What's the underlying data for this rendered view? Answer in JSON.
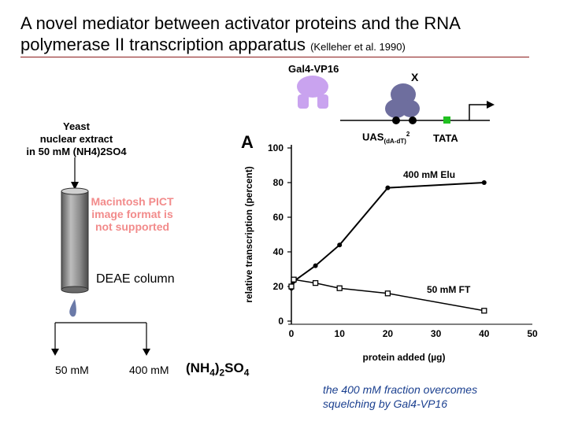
{
  "slide": {
    "title_main": "A novel mediator between activator proteins and the RNA polymerase II transcription apparatus",
    "title_citation": "(Kelleher et al. 1990)",
    "caption": "the 400 mM fraction overcomes squelching by Gal4-VP16"
  },
  "schematic": {
    "gal4_label": "Gal4-VP16",
    "x_label": "X",
    "uas_label": "UAS",
    "uas_subscript": "(dA-dT)",
    "uas_superscript": "2",
    "tata_label": "TATA"
  },
  "column": {
    "extract_line1": "Yeast",
    "extract_line2": "nuclear extract",
    "extract_line3": "in 50 mM (NH4)2SO4",
    "pict_text": "Macintosh PICT image format is not supported",
    "column_label": "DEAE column",
    "fraction_low": "50 mM",
    "fraction_high": "400 mM",
    "salt_formula": "(NH4)2SO4"
  },
  "chart_data": {
    "type": "line",
    "panel_label": "A",
    "xlabel": "protein added (µg)",
    "ylabel": "relative transcription (percent)",
    "xlim": [
      0,
      50
    ],
    "ylim": [
      0,
      100
    ],
    "xticks": [
      "0",
      "10",
      "20",
      "30",
      "40",
      "50"
    ],
    "yticks": [
      "0",
      "20",
      "40",
      "60",
      "80",
      "100"
    ],
    "series": [
      {
        "name": "400 mM Elu",
        "marker": "filled-circle",
        "x": [
          0,
          0.5,
          5,
          10,
          20,
          40
        ],
        "y": [
          19,
          23,
          32,
          44,
          77,
          80
        ]
      },
      {
        "name": "50 mM FT",
        "marker": "open-square",
        "x": [
          0,
          0.5,
          5,
          10,
          20,
          40
        ],
        "y": [
          20,
          24,
          22,
          19,
          16,
          6
        ]
      }
    ]
  }
}
